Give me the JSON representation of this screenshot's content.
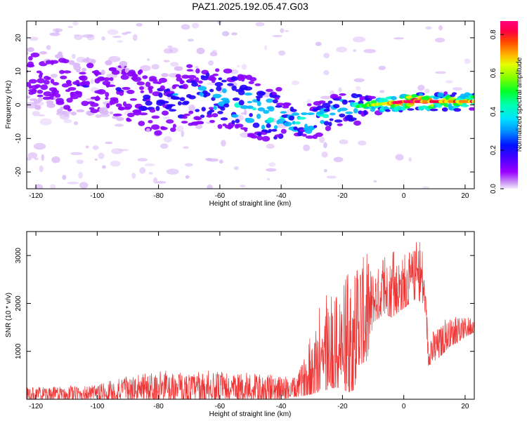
{
  "figure": {
    "title": "PAZ1.2025.192.05.47.G03"
  },
  "chart_data": [
    {
      "type": "heatmap",
      "xlabel": "Height of straight line (km)",
      "ylabel": "Frequency (Hz)",
      "xlim": [
        -123,
        23
      ],
      "ylim": [
        -25,
        25
      ],
      "xticks": [
        -120,
        -100,
        -80,
        -60,
        -40,
        -20,
        0,
        20
      ],
      "yticks": [
        -20,
        -10,
        0,
        10,
        20
      ],
      "colorbar": {
        "label": "Normalized spectral amplitude",
        "range": [
          0,
          0.87
        ],
        "ticks": [
          "0.0",
          "0.2",
          "0.4",
          "0.6",
          "0.8"
        ],
        "colormap": [
          "#dcb8f8",
          "#8800ff",
          "#2200ff",
          "#00b7ff",
          "#00ffcc",
          "#00ff22",
          "#aaff00",
          "#ffee00",
          "#ff8800",
          "#ff0044",
          "#ff0088"
        ]
      },
      "ridge": {
        "x": [
          -120,
          -110,
          -100,
          -90,
          -80,
          -70,
          -60,
          -50,
          -40,
          -30,
          -20,
          -10,
          0,
          10,
          20
        ],
        "frequency": [
          8,
          6,
          5,
          3,
          0,
          3,
          2,
          -1,
          -4,
          -5,
          -1,
          0,
          1,
          1,
          1
        ],
        "peak_amplitude": [
          0.1,
          0.12,
          0.12,
          0.15,
          0.2,
          0.25,
          0.3,
          0.35,
          0.35,
          0.4,
          0.3,
          0.55,
          0.87,
          0.75,
          0.7
        ]
      }
    },
    {
      "type": "line",
      "xlabel": "Height of straight line (km)",
      "ylabel": "SNR (10 * v/v)",
      "xlim": [
        -123,
        23
      ],
      "ylim": [
        0,
        3500
      ],
      "xticks": [
        -120,
        -100,
        -80,
        -60,
        -40,
        -20,
        0,
        20
      ],
      "yticks": [
        1000,
        2000,
        3000
      ],
      "color": "#ee3333",
      "envelope": {
        "x": [
          -123,
          -110,
          -100,
          -90,
          -80,
          -70,
          -60,
          -50,
          -40,
          -35,
          -30,
          -28,
          -25,
          -22,
          -20,
          -18,
          -16,
          -15,
          -12,
          -10,
          -6,
          -4,
          -2,
          0,
          2,
          4,
          6,
          7,
          8,
          10,
          12,
          15,
          18,
          20,
          23
        ],
        "low": [
          0,
          0,
          0,
          0,
          0,
          0,
          0,
          0,
          0,
          50,
          100,
          150,
          200,
          250,
          200,
          150,
          200,
          700,
          800,
          1600,
          1800,
          1700,
          1800,
          1900,
          2000,
          2100,
          2000,
          1800,
          700,
          800,
          900,
          1100,
          1200,
          1300,
          1400
        ],
        "high": [
          250,
          300,
          320,
          500,
          600,
          600,
          600,
          550,
          500,
          500,
          1400,
          1900,
          2250,
          2400,
          2700,
          2900,
          3000,
          3400,
          3100,
          2800,
          3000,
          3100,
          3050,
          3100,
          3200,
          3300,
          3400,
          2300,
          1550,
          1500,
          1600,
          1750,
          1700,
          1750,
          1800
        ]
      }
    }
  ]
}
